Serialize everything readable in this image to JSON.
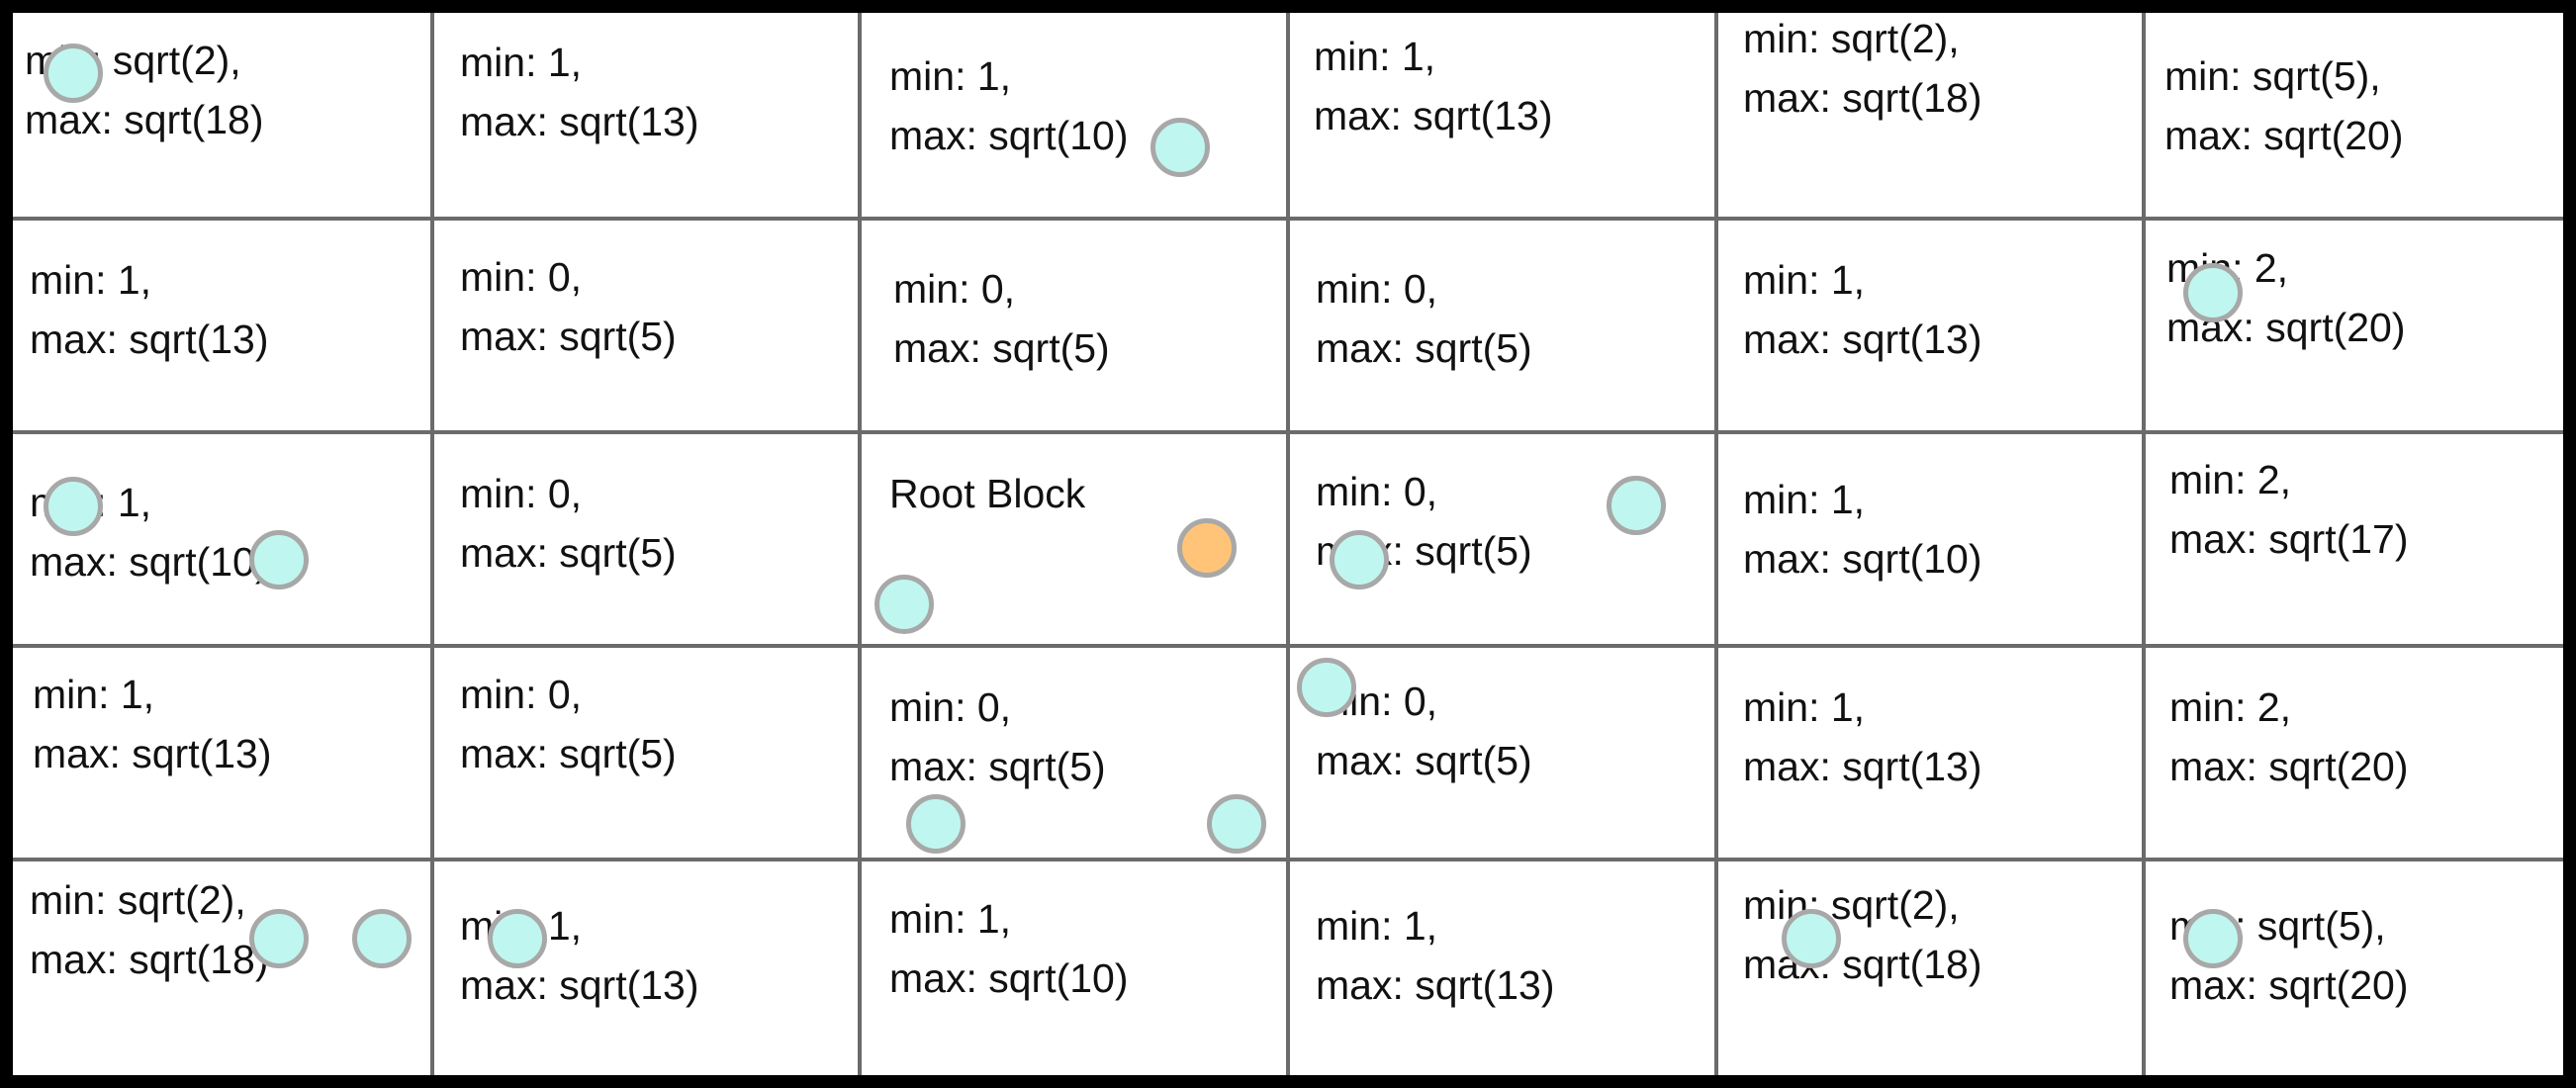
{
  "colors": {
    "grid_line": "#6b6b6b",
    "frame": "#000000",
    "agent": "#bff7f0",
    "root_marker": "#ffc477",
    "dot_border": "#a8a8a8"
  },
  "grid": {
    "rows": [
      [
        {
          "line1": "min: sqrt(2),",
          "line2": "max: sqrt(18)"
        },
        {
          "line1": "min: 1,",
          "line2": "max: sqrt(13)"
        },
        {
          "line1": "min: 1,",
          "line2": "max: sqrt(10)"
        },
        {
          "line1": "min: 1,",
          "line2": "max: sqrt(13)"
        },
        {
          "line1": "min: sqrt(2),",
          "line2": "max: sqrt(18)"
        },
        {
          "line1": "min: sqrt(5),",
          "line2": "max: sqrt(20)"
        }
      ],
      [
        {
          "line1": "min: 1,",
          "line2": "max: sqrt(13)"
        },
        {
          "line1": "min: 0,",
          "line2": "max: sqrt(5)"
        },
        {
          "line1": "min: 0,",
          "line2": "max: sqrt(5)"
        },
        {
          "line1": "min: 0,",
          "line2": "max: sqrt(5)"
        },
        {
          "line1": "min: 1,",
          "line2": "max: sqrt(13)"
        },
        {
          "line1": "min: 2,",
          "line2": "max: sqrt(20)"
        }
      ],
      [
        {
          "line1": "min: 1,",
          "line2": "max: sqrt(10)"
        },
        {
          "line1": "min: 0,",
          "line2": "max: sqrt(5)"
        },
        {
          "line1": "Root Block",
          "line2": ""
        },
        {
          "line1": "min: 0,",
          "line2": "max: sqrt(5)"
        },
        {
          "line1": "min: 1,",
          "line2": "max: sqrt(10)"
        },
        {
          "line1": "min: 2,",
          "line2": "max: sqrt(17)"
        }
      ],
      [
        {
          "line1": "min: 1,",
          "line2": "max: sqrt(13)"
        },
        {
          "line1": "min: 0,",
          "line2": "max: sqrt(5)"
        },
        {
          "line1": "min: 0,",
          "line2": "max: sqrt(5)"
        },
        {
          "line1": "min: 0,",
          "line2": "max: sqrt(5)"
        },
        {
          "line1": "min: 1,",
          "line2": "max: sqrt(13)"
        },
        {
          "line1": "min: 2,",
          "line2": "max: sqrt(20)"
        }
      ],
      [
        {
          "line1": "min: sqrt(2),",
          "line2": "max: sqrt(18)"
        },
        {
          "line1": "min: 1,",
          "line2": "max: sqrt(13)"
        },
        {
          "line1": "min: 1,",
          "line2": "max: sqrt(10)"
        },
        {
          "line1": "min: 1,",
          "line2": "max: sqrt(13)"
        },
        {
          "line1": "min: sqrt(2),",
          "line2": "max: sqrt(18)"
        },
        {
          "line1": "min: sqrt(5),",
          "line2": "max: sqrt(20)"
        }
      ]
    ]
  }
}
